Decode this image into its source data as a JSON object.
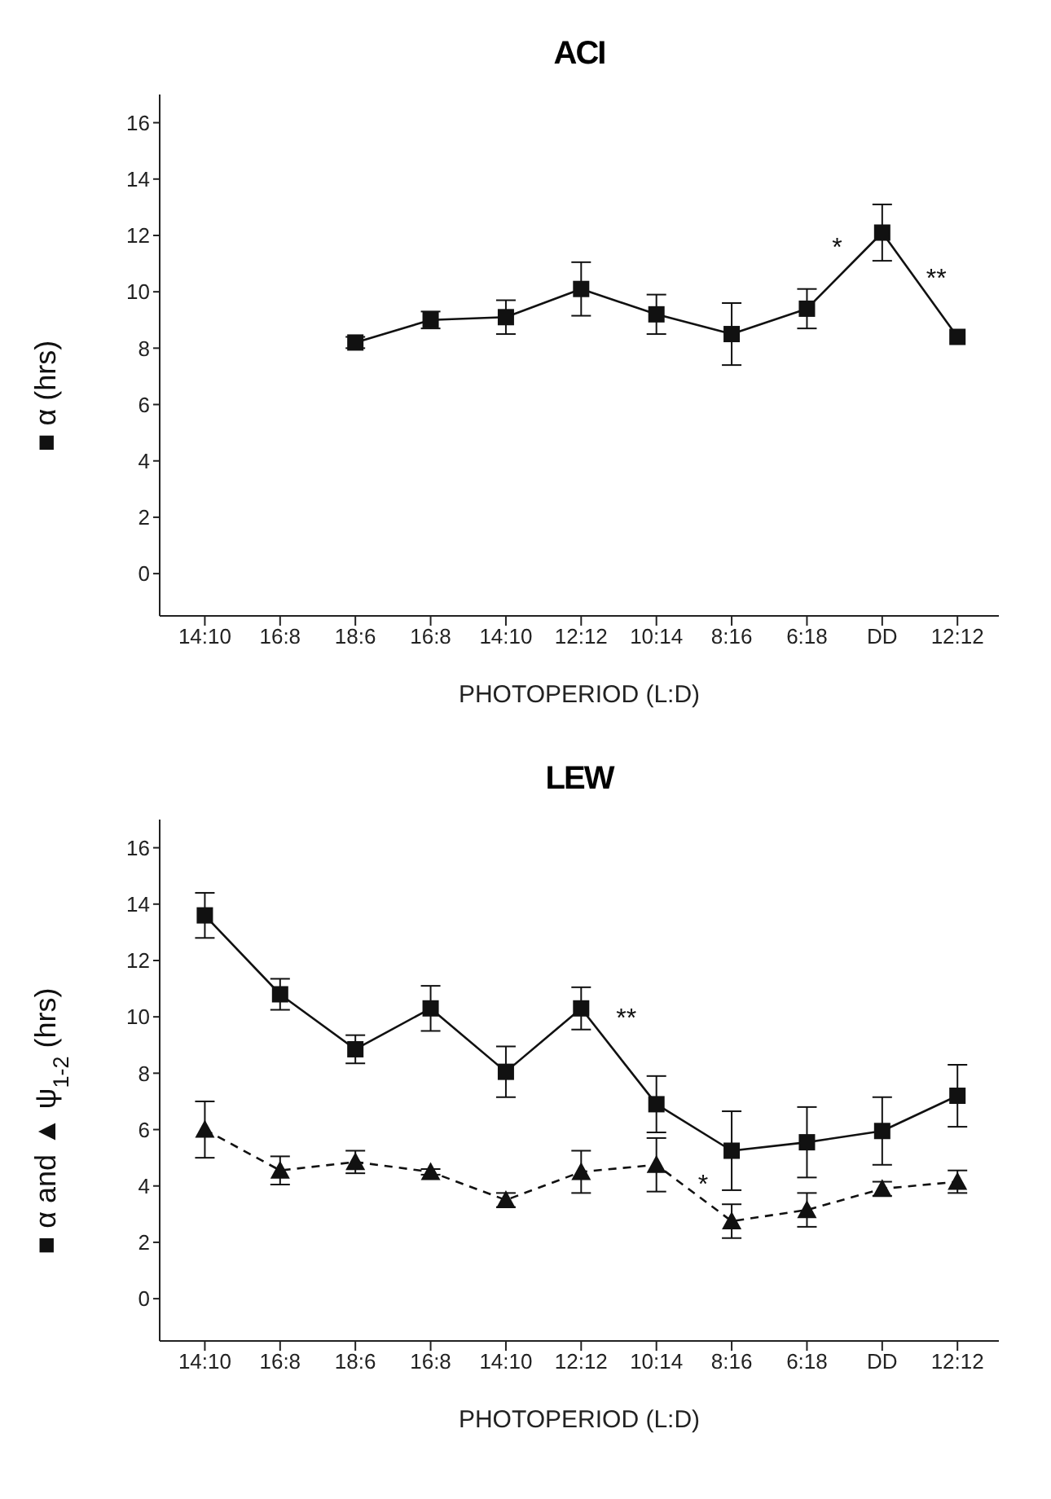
{
  "chart_data": [
    {
      "type": "line",
      "title": "ACI",
      "xlabel": "PHOTOPERIOD (L:D)",
      "ylabel": "■ α (hrs)",
      "categories": [
        "14:10",
        "16:8",
        "18:6",
        "16:8",
        "14:10",
        "12:12",
        "10:14",
        "8:16",
        "6:18",
        "DD",
        "12:12"
      ],
      "series": [
        {
          "color": "#111111",
          "marker": "square",
          "line_style": "solid",
          "values": [
            null,
            null,
            8.2,
            9.0,
            9.1,
            10.1,
            9.2,
            8.5,
            9.4,
            12.1,
            8.4
          ],
          "errors": [
            null,
            null,
            0.2,
            0.3,
            0.6,
            0.95,
            0.7,
            1.1,
            0.7,
            1.0,
            null
          ]
        }
      ],
      "ylim": [
        -1.5,
        17
      ],
      "yticks": [
        0,
        2,
        4,
        6,
        8,
        10,
        12,
        14,
        16
      ],
      "annotations": [
        "*",
        "**"
      ]
    },
    {
      "type": "line",
      "title": "LEW",
      "xlabel": "PHOTOPERIOD (L:D)",
      "ylabel": "■ α and ▲ ψ$_{1-2}$ (hrs)",
      "categories": [
        "14:10",
        "16:8",
        "18:6",
        "16:8",
        "14:10",
        "12:12",
        "10:14",
        "8:16",
        "6:18",
        "DD",
        "12:12"
      ],
      "series": [
        {
          "color": "#111111",
          "marker": "square",
          "line_style": "solid",
          "values": [
            13.6,
            10.8,
            8.85,
            10.3,
            8.05,
            10.3,
            6.9,
            5.25,
            5.55,
            5.95,
            7.2
          ],
          "errors": [
            0.8,
            0.55,
            0.5,
            0.8,
            0.9,
            0.75,
            1.0,
            1.4,
            1.25,
            1.2,
            1.1
          ]
        },
        {
          "color": "#111111",
          "marker": "triangle",
          "line_style": "dashed",
          "values": [
            6.0,
            4.55,
            4.85,
            4.5,
            3.5,
            4.5,
            4.75,
            2.75,
            3.15,
            3.9,
            4.15
          ],
          "errors": [
            1.0,
            0.5,
            0.4,
            0.1,
            0.25,
            0.75,
            0.95,
            0.6,
            0.6,
            0.25,
            0.4
          ]
        }
      ],
      "ylim": [
        -1.5,
        17
      ],
      "yticks": [
        0,
        2,
        4,
        6,
        8,
        10,
        12,
        14,
        16
      ],
      "annotations": [
        "**",
        "*"
      ]
    }
  ]
}
